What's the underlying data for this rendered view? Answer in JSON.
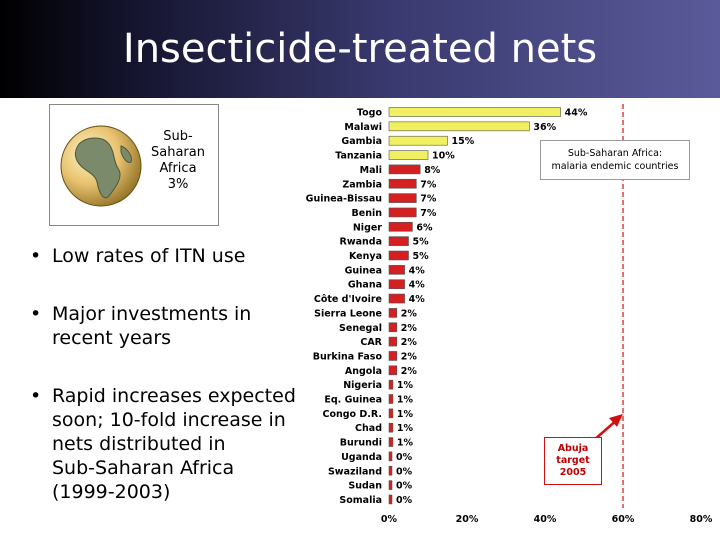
{
  "slide": {
    "title": "Insecticide-treated nets",
    "globe_label_line1": "Sub-",
    "globe_label_line2": "Saharan",
    "globe_label_line3": "Africa",
    "globe_label_line4": "3%",
    "bullets": [
      {
        "line1": "Low rates of ITN use",
        "line2": ""
      },
      {
        "line1": "Major investments in",
        "line2": "recent years"
      },
      {
        "line1": "Rapid increases expected",
        "line2": "soon; 10-fold increase in",
        "line3": "nets distributed in",
        "line4": "Sub-Saharan Africa",
        "line5": "(1999-2003)"
      }
    ],
    "bullet_symbol": "•"
  },
  "chart_data": {
    "type": "bar",
    "orientation": "horizontal",
    "categories": [
      "Togo",
      "Malawi",
      "Gambia",
      "Tanzania",
      "Mali",
      "Zambia",
      "Guinea-Bissau",
      "Benin",
      "Niger",
      "Rwanda",
      "Kenya",
      "Guinea",
      "Ghana",
      "Côte d'Ivoire",
      "Sierra Leone",
      "Senegal",
      "CAR",
      "Burkina Faso",
      "Angola",
      "Nigeria",
      "Eq. Guinea",
      "Congo D.R.",
      "Chad",
      "Burundi",
      "Uganda",
      "Swaziland",
      "Sudan",
      "Somalia"
    ],
    "values": [
      44,
      36,
      15,
      10,
      8,
      7,
      7,
      7,
      6,
      5,
      5,
      4,
      4,
      4,
      2,
      2,
      2,
      2,
      2,
      1,
      1,
      1,
      1,
      1,
      0,
      0,
      0,
      0
    ],
    "value_labels": [
      "44%",
      "36%",
      "15%",
      "10%",
      "8%",
      "7%",
      "7%",
      "7%",
      "6%",
      "5%",
      "5%",
      "4%",
      "4%",
      "4%",
      "2%",
      "2%",
      "2%",
      "2%",
      "2%",
      "1%",
      "1%",
      "1%",
      "1%",
      "1%",
      "0%",
      "0%",
      "0%",
      "0%"
    ],
    "xlim": [
      0,
      80
    ],
    "x_ticks": [
      "0%",
      "20%",
      "40%",
      "60%",
      "80%"
    ],
    "target_value": 60,
    "target_label_line1": "Abuja",
    "target_label_line2": "target",
    "target_label_line3": "2005",
    "legend_line1": "Sub-Saharan Africa:",
    "legend_line2": "malaria endemic countries",
    "colors": {
      "yellow": "#f0f060",
      "red": "#d42020",
      "target_line": "#d01010",
      "arrow": "#d01010"
    }
  }
}
